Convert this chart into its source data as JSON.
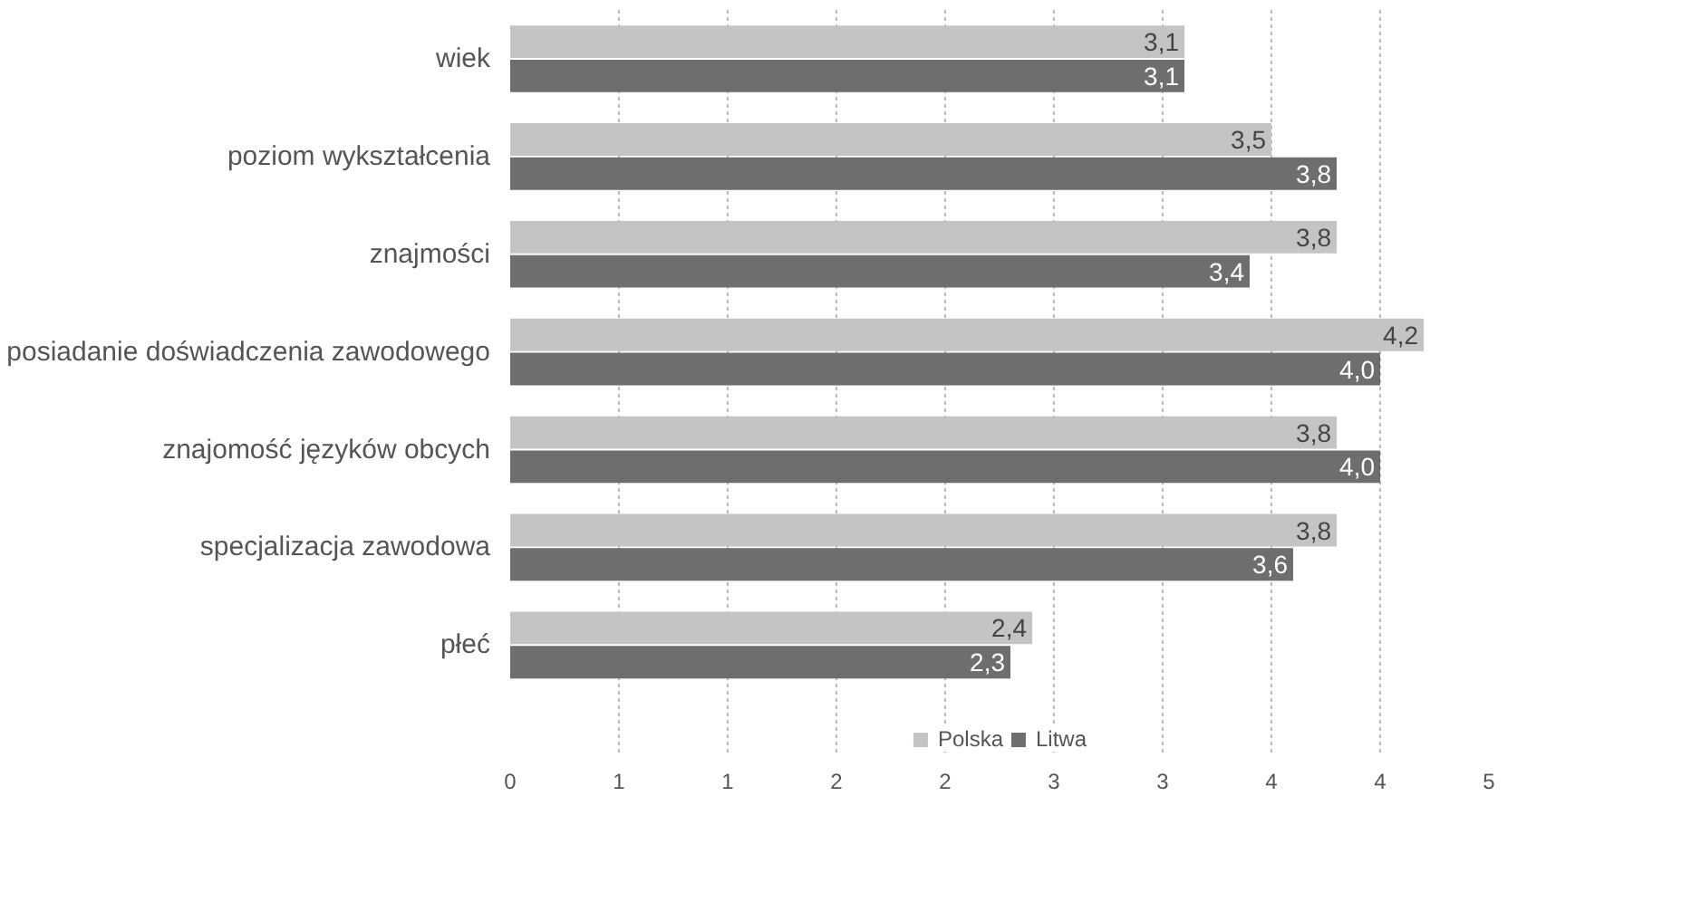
{
  "chart_data": {
    "type": "bar",
    "orientation": "horizontal",
    "categories": [
      "wiek",
      "poziom wykształcenia",
      "znajmości",
      "posiadanie doświadczenia zawodowego",
      "znajomość języków obcych",
      "specjalizacja zawodowa",
      "płeć"
    ],
    "series": [
      {
        "name": "Polska",
        "color": "#c4c4c4",
        "values": [
          3.1,
          3.5,
          3.8,
          4.2,
          3.8,
          3.8,
          2.4
        ],
        "value_labels": [
          "3,1",
          "3,5",
          "3,8",
          "4,2",
          "3,8",
          "3,8",
          "2,4"
        ]
      },
      {
        "name": "Litwa",
        "color": "#6e6e6e",
        "values": [
          3.1,
          3.8,
          3.4,
          4.0,
          4.0,
          3.6,
          2.3
        ],
        "value_labels": [
          "3,1",
          "3,8",
          "3,4",
          "4,0",
          "4,0",
          "3,6",
          "2,3"
        ]
      }
    ],
    "xlim": [
      0,
      4.5
    ],
    "xticks": [
      0,
      {
        "value": 0.5,
        "label": "1"
      },
      1,
      {
        "value": 1.5,
        "label": "2"
      },
      2,
      {
        "value": 2.5,
        "label": "3"
      },
      3,
      {
        "value": 3.5,
        "label": "4"
      },
      4,
      {
        "value": 4.5,
        "label": "5"
      }
    ],
    "grid": "x",
    "legend": "bottom"
  }
}
